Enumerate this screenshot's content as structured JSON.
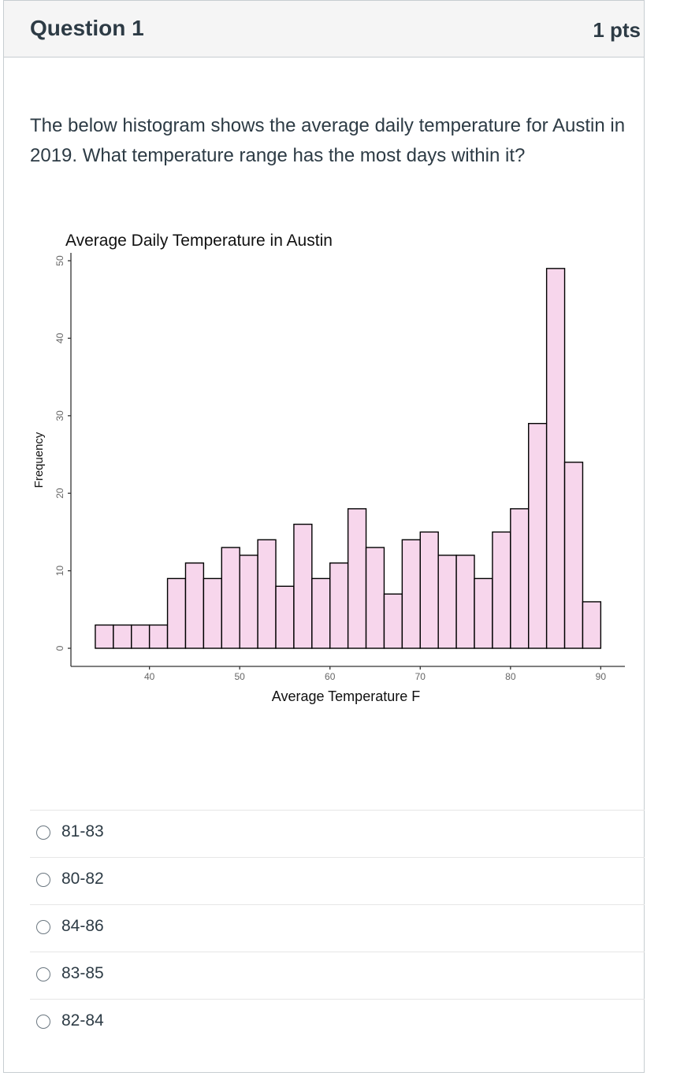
{
  "question": {
    "title": "Question 1",
    "points": "1 pts",
    "text": "The below histogram shows the average daily temperature for Austin in 2019. What temperature range has the most days within it?"
  },
  "chart_data": {
    "type": "bar",
    "title": "Average Daily Temperature in Austin",
    "xlabel": "Average Temperature F",
    "ylabel": "Frequency",
    "bin_width": 2,
    "bin_starts": [
      34,
      36,
      38,
      40,
      42,
      44,
      46,
      48,
      50,
      52,
      54,
      56,
      58,
      60,
      62,
      64,
      66,
      68,
      70,
      72,
      74,
      76,
      78,
      80,
      82,
      84,
      86,
      88
    ],
    "values": [
      3,
      3,
      3,
      3,
      9,
      11,
      9,
      13,
      12,
      14,
      8,
      16,
      9,
      11,
      18,
      13,
      7,
      14,
      15,
      12,
      12,
      9,
      15,
      18,
      29,
      49,
      24,
      6
    ],
    "xlim": [
      31.3,
      92.5
    ],
    "ylim": [
      0,
      50
    ],
    "x_ticks": [
      40,
      50,
      60,
      70,
      80,
      90
    ],
    "y_ticks": [
      0,
      10,
      20,
      30,
      40,
      50
    ],
    "bar_fill": "#f7d6ec",
    "bar_stroke": "#000000",
    "grid": false
  },
  "answers": [
    {
      "label": "81-83"
    },
    {
      "label": "80-82"
    },
    {
      "label": "84-86"
    },
    {
      "label": "83-85"
    },
    {
      "label": "82-84"
    }
  ]
}
